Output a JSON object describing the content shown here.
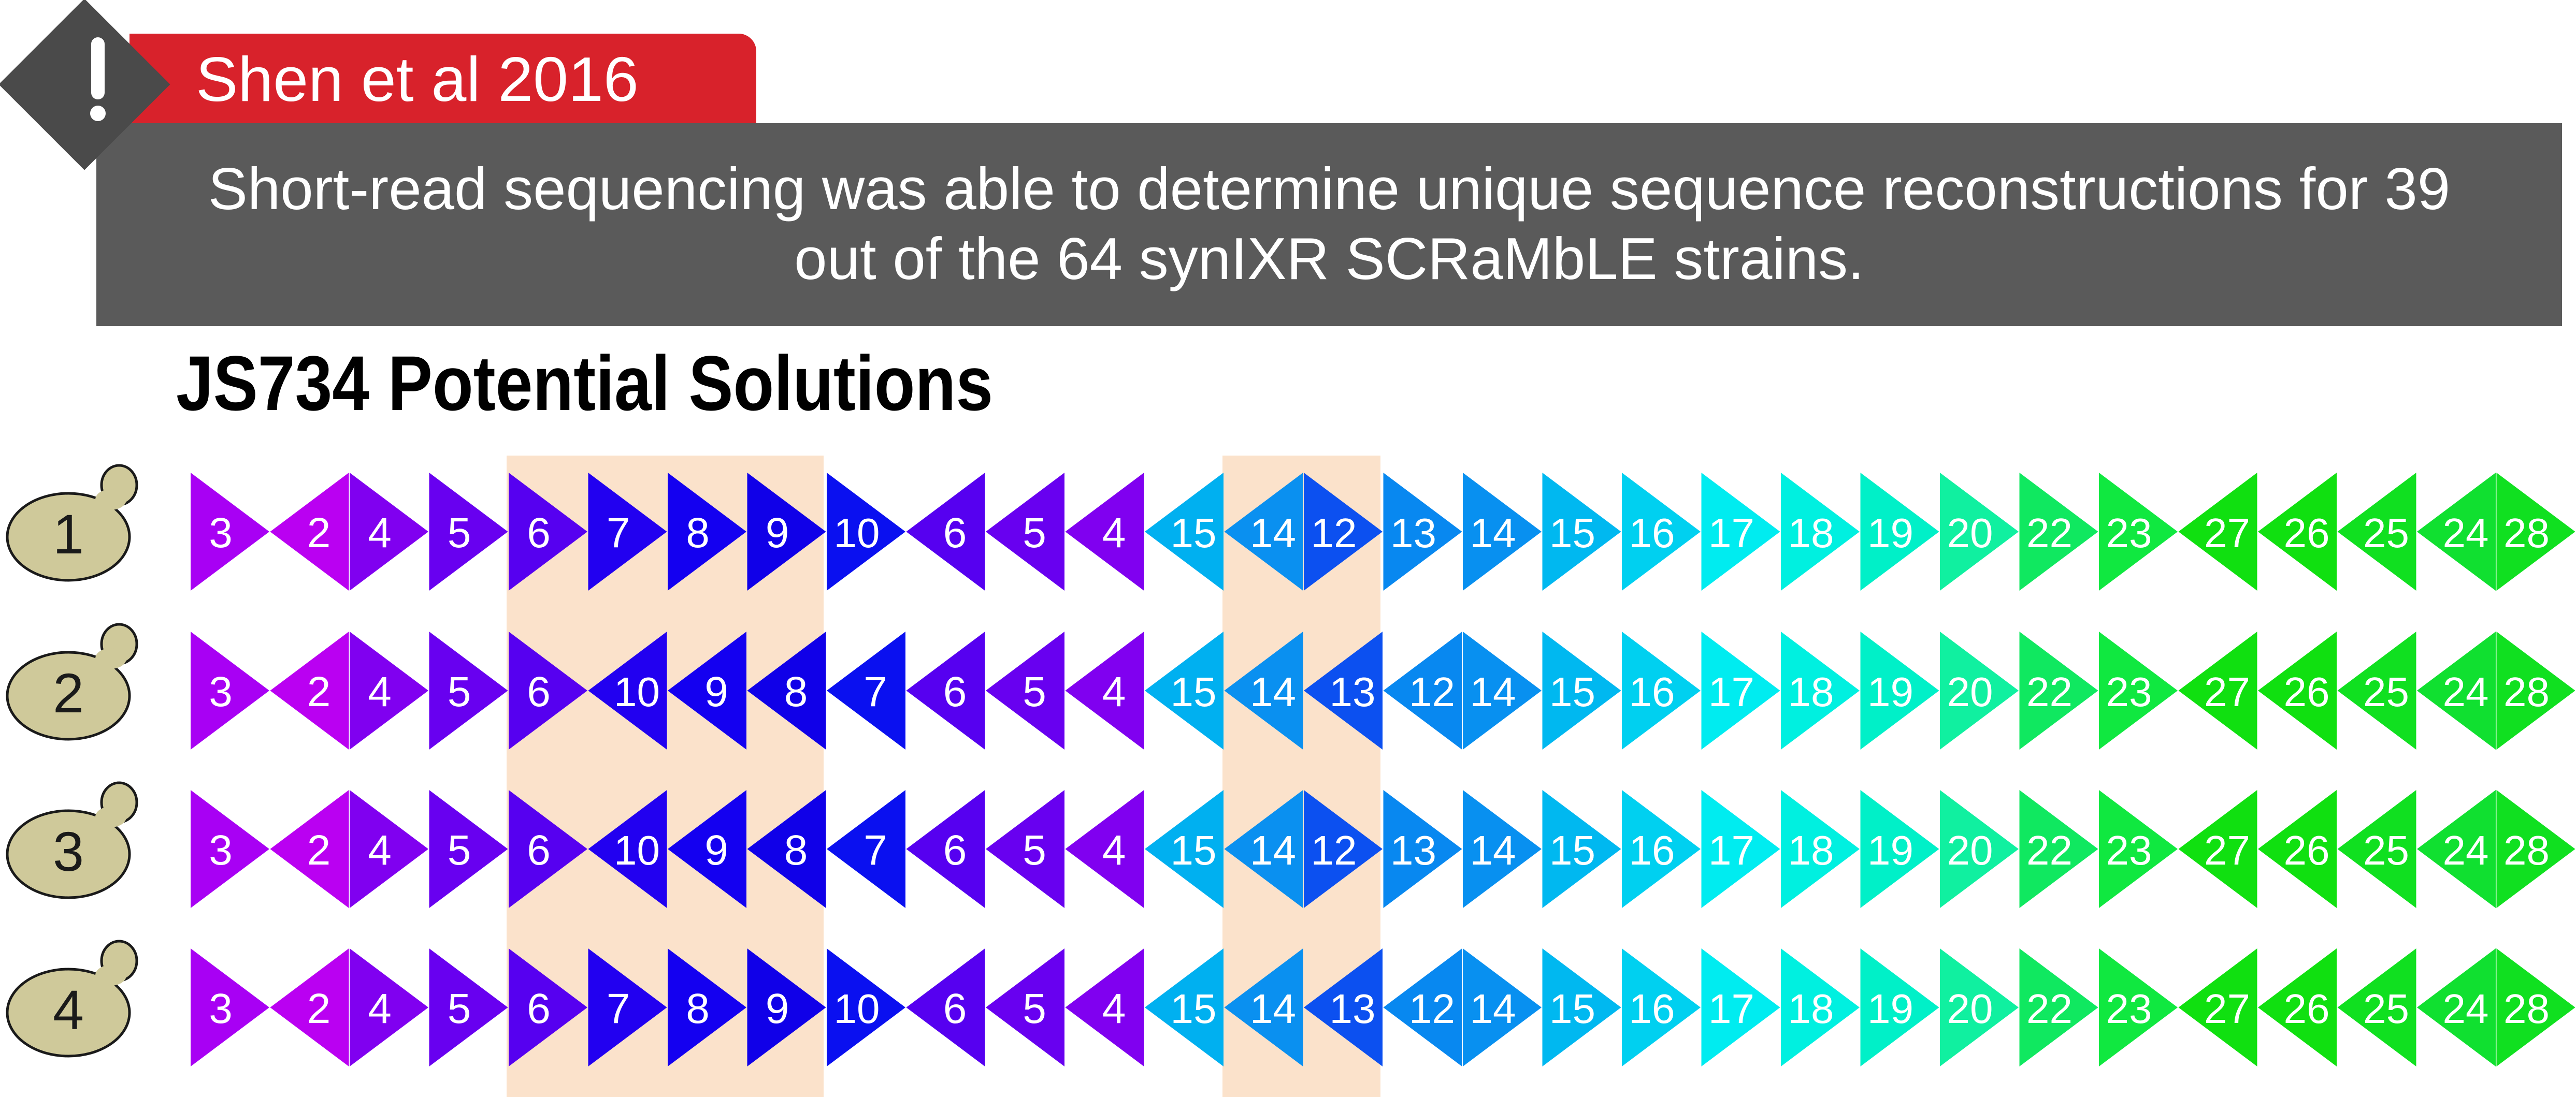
{
  "citation": "Shen et al 2016",
  "notice": {
    "line1": "Short-read sequencing was able to determine unique sequence reconstructions for 39",
    "line2": "out of the 64 synIXR SCRaMbLE strains."
  },
  "section_title": "JS734 Potential Solutions",
  "colors": {
    "citation_red": "#d8222b",
    "notice_gray": "#5a5a5a",
    "warning_gray": "#4a4a4a",
    "highlight_band": "#fbe2cb",
    "yeast_fill": "#cfc99a",
    "segment_purple_dark": "#4400f0",
    "segment_blue": "#1800f0",
    "segment_cyan": "#00d8f0",
    "segment_green": "#10e010"
  },
  "icons": {
    "warning": "exclamation-diamond-icon",
    "strain": "yeast-cell-icon"
  },
  "highlight_columns": [
    [
      4,
      7
    ],
    [
      13,
      14
    ]
  ],
  "solutions": [
    {
      "label": "1",
      "segments": [
        {
          "n": "3",
          "dir": "R"
        },
        {
          "n": "2",
          "dir": "L"
        },
        {
          "n": "4",
          "dir": "R"
        },
        {
          "n": "5",
          "dir": "R"
        },
        {
          "n": "6",
          "dir": "R"
        },
        {
          "n": "7",
          "dir": "R"
        },
        {
          "n": "8",
          "dir": "R"
        },
        {
          "n": "9",
          "dir": "R"
        },
        {
          "n": "10",
          "dir": "R"
        },
        {
          "n": "6",
          "dir": "L"
        },
        {
          "n": "5",
          "dir": "L"
        },
        {
          "n": "4",
          "dir": "L"
        },
        {
          "n": "15",
          "dir": "L"
        },
        {
          "n": "14",
          "dir": "L"
        },
        {
          "n": "12",
          "dir": "R"
        },
        {
          "n": "13",
          "dir": "R"
        },
        {
          "n": "14",
          "dir": "R"
        },
        {
          "n": "15",
          "dir": "R"
        },
        {
          "n": "16",
          "dir": "R"
        },
        {
          "n": "17",
          "dir": "R"
        },
        {
          "n": "18",
          "dir": "R"
        },
        {
          "n": "19",
          "dir": "R"
        },
        {
          "n": "20",
          "dir": "R"
        },
        {
          "n": "22",
          "dir": "R"
        },
        {
          "n": "23",
          "dir": "R"
        },
        {
          "n": "27",
          "dir": "L"
        },
        {
          "n": "26",
          "dir": "L"
        },
        {
          "n": "25",
          "dir": "L"
        },
        {
          "n": "24",
          "dir": "L"
        },
        {
          "n": "28",
          "dir": "R"
        }
      ]
    },
    {
      "label": "2",
      "segments": [
        {
          "n": "3",
          "dir": "R"
        },
        {
          "n": "2",
          "dir": "L"
        },
        {
          "n": "4",
          "dir": "R"
        },
        {
          "n": "5",
          "dir": "R"
        },
        {
          "n": "6",
          "dir": "R"
        },
        {
          "n": "10",
          "dir": "L"
        },
        {
          "n": "9",
          "dir": "L"
        },
        {
          "n": "8",
          "dir": "L"
        },
        {
          "n": "7",
          "dir": "L"
        },
        {
          "n": "6",
          "dir": "L"
        },
        {
          "n": "5",
          "dir": "L"
        },
        {
          "n": "4",
          "dir": "L"
        },
        {
          "n": "15",
          "dir": "L"
        },
        {
          "n": "14",
          "dir": "L"
        },
        {
          "n": "13",
          "dir": "L"
        },
        {
          "n": "12",
          "dir": "L"
        },
        {
          "n": "14",
          "dir": "R"
        },
        {
          "n": "15",
          "dir": "R"
        },
        {
          "n": "16",
          "dir": "R"
        },
        {
          "n": "17",
          "dir": "R"
        },
        {
          "n": "18",
          "dir": "R"
        },
        {
          "n": "19",
          "dir": "R"
        },
        {
          "n": "20",
          "dir": "R"
        },
        {
          "n": "22",
          "dir": "R"
        },
        {
          "n": "23",
          "dir": "R"
        },
        {
          "n": "27",
          "dir": "L"
        },
        {
          "n": "26",
          "dir": "L"
        },
        {
          "n": "25",
          "dir": "L"
        },
        {
          "n": "24",
          "dir": "L"
        },
        {
          "n": "28",
          "dir": "R"
        }
      ]
    },
    {
      "label": "3",
      "segments": [
        {
          "n": "3",
          "dir": "R"
        },
        {
          "n": "2",
          "dir": "L"
        },
        {
          "n": "4",
          "dir": "R"
        },
        {
          "n": "5",
          "dir": "R"
        },
        {
          "n": "6",
          "dir": "R"
        },
        {
          "n": "10",
          "dir": "L"
        },
        {
          "n": "9",
          "dir": "L"
        },
        {
          "n": "8",
          "dir": "L"
        },
        {
          "n": "7",
          "dir": "L"
        },
        {
          "n": "6",
          "dir": "L"
        },
        {
          "n": "5",
          "dir": "L"
        },
        {
          "n": "4",
          "dir": "L"
        },
        {
          "n": "15",
          "dir": "L"
        },
        {
          "n": "14",
          "dir": "L"
        },
        {
          "n": "12",
          "dir": "R"
        },
        {
          "n": "13",
          "dir": "R"
        },
        {
          "n": "14",
          "dir": "R"
        },
        {
          "n": "15",
          "dir": "R"
        },
        {
          "n": "16",
          "dir": "R"
        },
        {
          "n": "17",
          "dir": "R"
        },
        {
          "n": "18",
          "dir": "R"
        },
        {
          "n": "19",
          "dir": "R"
        },
        {
          "n": "20",
          "dir": "R"
        },
        {
          "n": "22",
          "dir": "R"
        },
        {
          "n": "23",
          "dir": "R"
        },
        {
          "n": "27",
          "dir": "L"
        },
        {
          "n": "26",
          "dir": "L"
        },
        {
          "n": "25",
          "dir": "L"
        },
        {
          "n": "24",
          "dir": "L"
        },
        {
          "n": "28",
          "dir": "R"
        }
      ]
    },
    {
      "label": "4",
      "segments": [
        {
          "n": "3",
          "dir": "R"
        },
        {
          "n": "2",
          "dir": "L"
        },
        {
          "n": "4",
          "dir": "R"
        },
        {
          "n": "5",
          "dir": "R"
        },
        {
          "n": "6",
          "dir": "R"
        },
        {
          "n": "7",
          "dir": "R"
        },
        {
          "n": "8",
          "dir": "R"
        },
        {
          "n": "9",
          "dir": "R"
        },
        {
          "n": "10",
          "dir": "R"
        },
        {
          "n": "6",
          "dir": "L"
        },
        {
          "n": "5",
          "dir": "L"
        },
        {
          "n": "4",
          "dir": "L"
        },
        {
          "n": "15",
          "dir": "L"
        },
        {
          "n": "14",
          "dir": "L"
        },
        {
          "n": "13",
          "dir": "L"
        },
        {
          "n": "12",
          "dir": "L"
        },
        {
          "n": "14",
          "dir": "R"
        },
        {
          "n": "15",
          "dir": "R"
        },
        {
          "n": "16",
          "dir": "R"
        },
        {
          "n": "17",
          "dir": "R"
        },
        {
          "n": "18",
          "dir": "R"
        },
        {
          "n": "19",
          "dir": "R"
        },
        {
          "n": "20",
          "dir": "R"
        },
        {
          "n": "22",
          "dir": "R"
        },
        {
          "n": "23",
          "dir": "R"
        },
        {
          "n": "27",
          "dir": "L"
        },
        {
          "n": "26",
          "dir": "L"
        },
        {
          "n": "25",
          "dir": "L"
        },
        {
          "n": "24",
          "dir": "L"
        },
        {
          "n": "28",
          "dir": "R"
        }
      ]
    }
  ]
}
